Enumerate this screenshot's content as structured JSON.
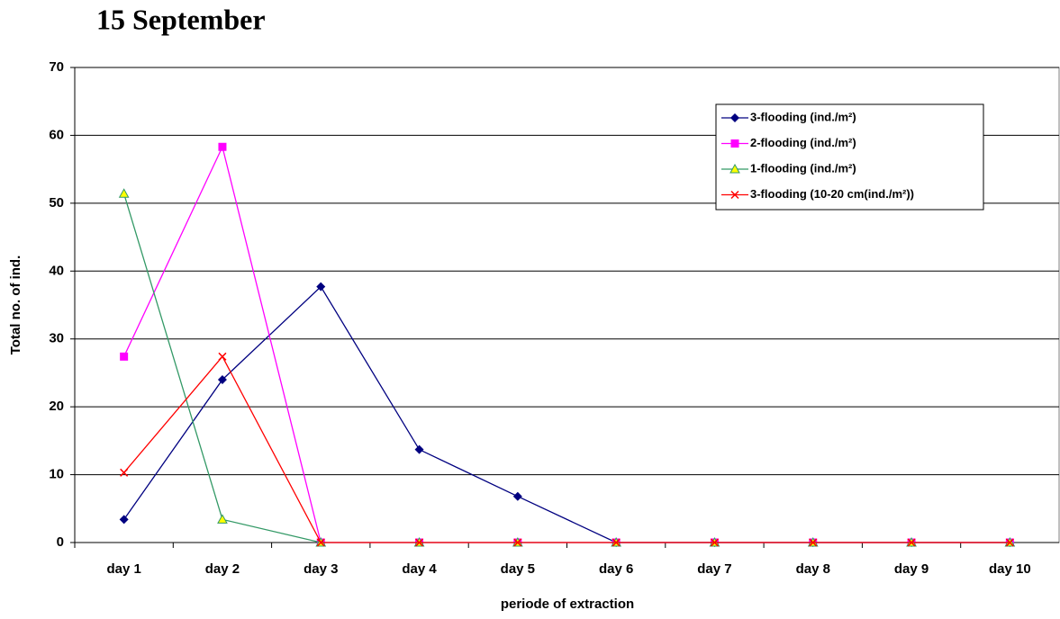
{
  "chart_data": {
    "type": "line",
    "title": "15 September",
    "x_label": "periode of extraction",
    "y_label": "Total no. of ind.",
    "categories": [
      "day 1",
      "day 2",
      "day 3",
      "day 4",
      "day 5",
      "day 6",
      "day 7",
      "day 8",
      "day 9",
      "day 10"
    ],
    "series": [
      {
        "name": "3-flooding (ind./m²)",
        "color": "#000080",
        "marker": "diamond",
        "values": [
          3.4,
          24,
          37.7,
          13.7,
          6.8,
          0,
          0,
          0,
          0,
          0
        ]
      },
      {
        "name": "2-flooding (ind./m²)",
        "color": "#ff00ff",
        "marker": "square",
        "values": [
          27.4,
          58.3,
          0,
          0,
          0,
          0,
          0,
          0,
          0,
          0
        ]
      },
      {
        "name": "1-flooding (ind./m²)",
        "color": "#339966",
        "marker": "triangle",
        "values": [
          51.4,
          3.4,
          0,
          0,
          0,
          0,
          0,
          0,
          0,
          0
        ]
      },
      {
        "name": "3-flooding (10-20 cm(ind./m²))",
        "color": "#ff0000",
        "marker": "x",
        "values": [
          10.3,
          27.4,
          0,
          0,
          0,
          0,
          0,
          0,
          0,
          0
        ]
      }
    ],
    "ylim": [
      0,
      70
    ],
    "yticks": [
      0,
      10,
      20,
      30,
      40,
      50,
      60,
      70
    ],
    "grid": true,
    "legend": "upper right"
  }
}
